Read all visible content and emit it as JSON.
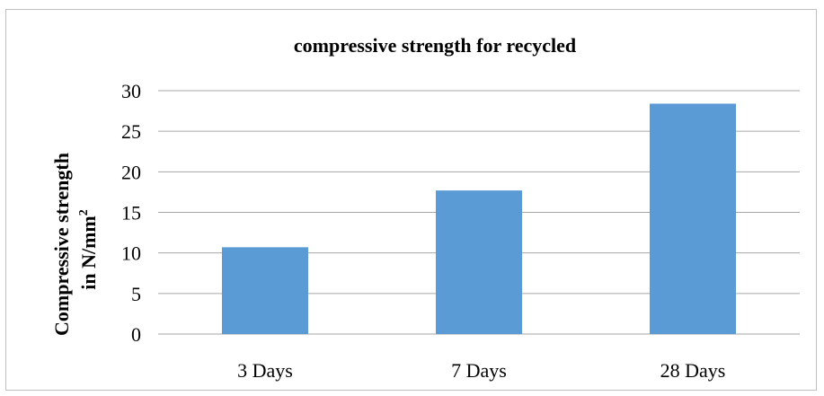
{
  "chart_data": {
    "type": "bar",
    "title": "compressive strength for recycled",
    "ylabel_line1": "Compressive strength",
    "ylabel_line2": "in  N/mm",
    "ylabel_sup": "2",
    "categories": [
      "3 Days",
      "7 Days",
      "28 Days"
    ],
    "values": [
      10.7,
      17.7,
      28.4
    ],
    "ylim": [
      0,
      30
    ],
    "yticks": [
      0,
      5,
      10,
      15,
      20,
      25,
      30
    ],
    "grid": true,
    "legend": "none",
    "bar_color": "#5b9bd5",
    "grid_color": "#a6a6a6"
  }
}
